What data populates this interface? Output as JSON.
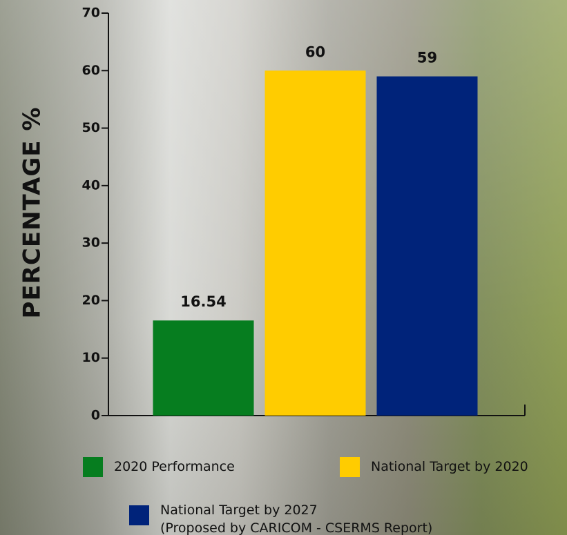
{
  "chart_data": {
    "type": "bar",
    "ylabel": "PERCENTAGE %",
    "categories": [
      null
    ],
    "series": [
      {
        "name": "2020 Performance",
        "color": "#067d1f",
        "values": [
          16.54
        ],
        "value_labels": [
          "16.54"
        ]
      },
      {
        "name": "National Target by 2020",
        "color": "#ffcc00",
        "values": [
          60
        ],
        "value_labels": [
          "60"
        ]
      },
      {
        "name": "National Target by 2027\n(Proposed by CARICOM - CSERMS Report)",
        "color": "#00237a",
        "values": [
          59
        ],
        "value_labels": [
          "59"
        ]
      }
    ],
    "ylim": [
      0,
      70
    ],
    "yticks": [
      0,
      10,
      20,
      30,
      40,
      50,
      60,
      70
    ]
  }
}
